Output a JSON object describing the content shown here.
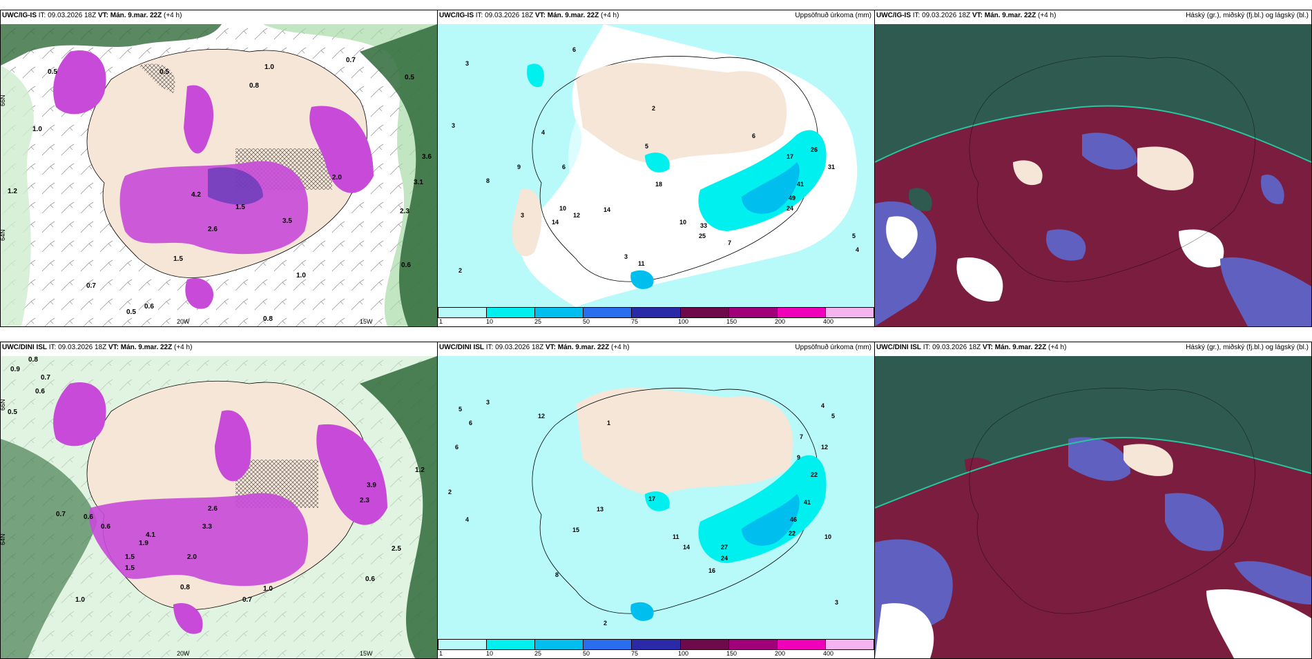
{
  "rows": [
    {
      "model": "UWC/IG-IS",
      "it_label": "IT:",
      "it_value": "09.03.2026 18Z",
      "vt_label": "VT:",
      "vt_value": "Mán. 9.mar. 22Z",
      "lead": "(+4 h)"
    },
    {
      "model": "UWC/DINI ISL",
      "it_label": "IT:",
      "it_value": "09.03.2026 18Z",
      "vt_label": "VT:",
      "vt_value": "Mán. 9.mar. 22Z",
      "lead": "(+4 h)"
    }
  ],
  "precip_accum_title": "Uppsöfnuð úrkoma (mm)",
  "cloud_title": "Háský (gr.), miðský (fj.bl.) og lágský (bl.)",
  "axis_labels": {
    "lat_66": "66N",
    "lat_64": "64N",
    "lon_20": "20W",
    "lon_15": "15W"
  },
  "legend": {
    "ticks": [
      "1",
      "10",
      "25",
      "50",
      "75",
      "100",
      "150",
      "200",
      "400"
    ],
    "colors": [
      "#b8fafa",
      "#00f0f0",
      "#00bfef",
      "#2a6ef0",
      "#2a2aa8",
      "#6e0a4a",
      "#a0007a",
      "#f000b8",
      "#f5b4f0"
    ]
  },
  "colors": {
    "land": "#f6e6d8",
    "snow_pink": "#c84ad8",
    "green_dark": "#2f6a3a",
    "green_light": "#cdeccd",
    "precip_light": "#b8fafa",
    "cloud_dark": "#2f5a4f",
    "cloud_maroon": "#7a1d3e",
    "cloud_blue": "#6060c0"
  },
  "map_labels": {
    "r0_left": [
      "0.5",
      "0.5",
      "1.0",
      "0.8",
      "0.7",
      "0.5",
      "3.6",
      "1.2",
      "1.0",
      "0.6",
      "0.7",
      "0.5",
      "0.6",
      "0.8",
      "1.0",
      "1.5",
      "2.0",
      "3.1",
      "2.3",
      "4.2",
      "3.5",
      "2.6",
      "1.5"
    ],
    "r0_mid": [
      "5",
      "3",
      "6",
      "3",
      "4",
      "2",
      "6",
      "8",
      "10",
      "12",
      "11",
      "14",
      "18",
      "25",
      "33",
      "41",
      "24",
      "26",
      "31",
      "17",
      "49",
      "7",
      "5",
      "4",
      "3",
      "2",
      "6",
      "9",
      "10",
      "14",
      "3"
    ],
    "r1_left": [
      "0.9",
      "0.8",
      "0.7",
      "0.6",
      "0.5",
      "0.6",
      "0.7",
      "1.0",
      "1.5",
      "2.6",
      "3.3",
      "0.6",
      "2.0",
      "1.0",
      "0.8",
      "0.7",
      "0.6",
      "2.5",
      "1.5",
      "4.1",
      "3.9",
      "2.3",
      "1.9",
      "1.2"
    ],
    "r1_mid": [
      "5",
      "3",
      "2",
      "4",
      "6",
      "12",
      "13",
      "15",
      "17",
      "27",
      "24",
      "16",
      "22",
      "41",
      "46",
      "22",
      "12",
      "7",
      "9",
      "10",
      "14",
      "11",
      "3",
      "2",
      "1",
      "5",
      "6",
      "8",
      "4"
    ]
  }
}
